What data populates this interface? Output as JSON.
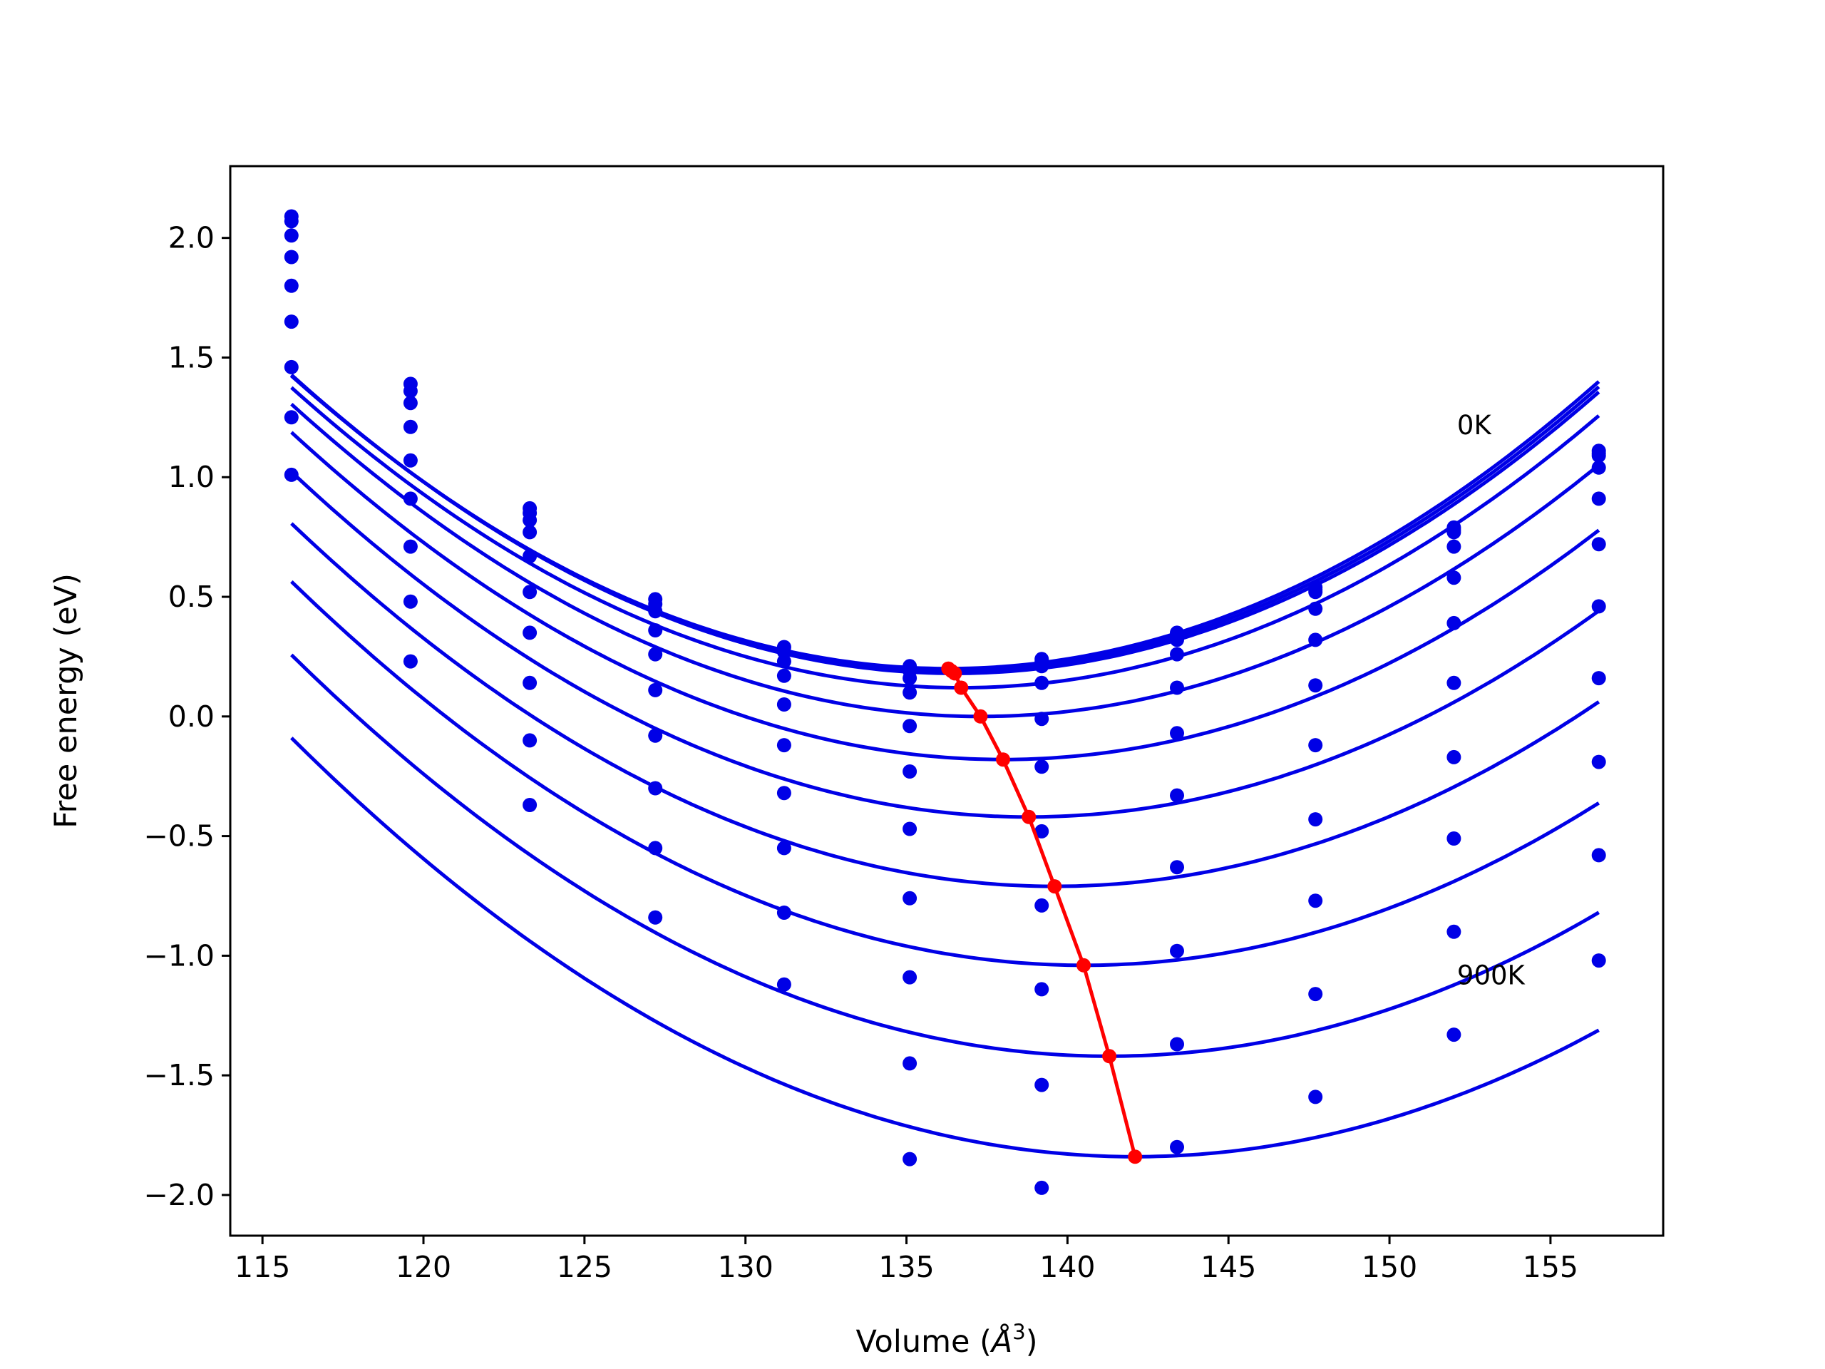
{
  "chart_data": {
    "type": "line",
    "title": "",
    "xlabel_main": "Volume (",
    "xlabel_unit": "Å",
    "xlabel_exp": "3",
    "xlabel_close": ")",
    "ylabel": "Free energy (eV)",
    "xlim": [
      114.0,
      158.5
    ],
    "ylim": [
      -2.17,
      2.3
    ],
    "xticks": [
      {
        "value": 115,
        "label": "115"
      },
      {
        "value": 120,
        "label": "120"
      },
      {
        "value": 125,
        "label": "125"
      },
      {
        "value": 130,
        "label": "130"
      },
      {
        "value": 135,
        "label": "135"
      },
      {
        "value": 140,
        "label": "140"
      },
      {
        "value": 145,
        "label": "145"
      },
      {
        "value": 150,
        "label": "150"
      },
      {
        "value": 155,
        "label": "155"
      }
    ],
    "yticks": [
      {
        "value": 2.0,
        "label": "2.0"
      },
      {
        "value": 1.5,
        "label": "1.5"
      },
      {
        "value": 1.0,
        "label": "1.0"
      },
      {
        "value": 0.5,
        "label": "0.5"
      },
      {
        "value": 0.0,
        "label": "0.0"
      },
      {
        "value": -0.5,
        "label": "−0.5"
      },
      {
        "value": -1.0,
        "label": "−1.0"
      },
      {
        "value": -1.5,
        "label": "−1.5"
      },
      {
        "value": -2.0,
        "label": "−2.0"
      }
    ],
    "grid": false,
    "legend": "none",
    "curve_color": "#0000e6",
    "min_line_color": "#ff0000",
    "annotations": [
      {
        "text": "0K",
        "x": 152.1,
        "y": 1.18
      },
      {
        "text": "900K",
        "x": 152.1,
        "y": -1.12
      }
    ],
    "x": [
      115.9,
      119.6,
      123.3,
      127.2,
      131.2,
      135.1,
      139.2,
      143.4,
      147.7,
      152.0,
      156.5
    ],
    "series": [
      {
        "points": [
          2.09,
          1.39,
          0.87,
          0.49,
          0.29,
          0.21,
          0.24,
          0.35,
          0.54,
          0.79,
          1.11
        ],
        "fit": {
          "a": 0.00294,
          "vmin": 136.3,
          "emin": 0.2
        }
      },
      {
        "points": [
          2.07,
          1.36,
          0.85,
          0.47,
          0.27,
          0.19,
          0.23,
          0.34,
          0.53,
          0.78,
          1.1
        ],
        "fit": {
          "a": 0.00294,
          "vmin": 136.4,
          "emin": 0.19
        }
      },
      {
        "points": [
          2.01,
          1.31,
          0.82,
          0.44,
          0.23,
          0.16,
          0.21,
          0.32,
          0.52,
          0.77,
          1.09
        ],
        "fit": {
          "a": 0.00294,
          "vmin": 136.5,
          "emin": 0.18
        }
      },
      {
        "points": [
          1.92,
          1.21,
          0.77,
          0.36,
          0.17,
          0.1,
          0.14,
          0.26,
          0.45,
          0.71,
          1.04
        ],
        "fit": {
          "a": 0.0029,
          "vmin": 136.7,
          "emin": 0.12
        }
      },
      {
        "points": [
          1.8,
          1.07,
          0.67,
          0.26,
          0.05,
          -0.04,
          -0.01,
          0.12,
          0.32,
          0.58,
          0.91
        ],
        "fit": {
          "a": 0.00285,
          "vmin": 137.3,
          "emin": 0.0
        }
      },
      {
        "points": [
          1.65,
          0.91,
          0.52,
          0.11,
          -0.12,
          -0.23,
          -0.21,
          -0.07,
          0.13,
          0.39,
          0.72
        ],
        "fit": {
          "a": 0.0028,
          "vmin": 138.0,
          "emin": -0.18
        }
      },
      {
        "points": [
          1.46,
          0.71,
          0.35,
          -0.08,
          -0.32,
          -0.47,
          -0.48,
          -0.33,
          -0.12,
          0.14,
          0.46
        ],
        "fit": {
          "a": 0.00275,
          "vmin": 138.8,
          "emin": -0.42
        }
      },
      {
        "points": [
          1.25,
          0.48,
          0.14,
          -0.3,
          -0.55,
          -0.76,
          -0.79,
          -0.63,
          -0.43,
          -0.17,
          0.16
        ],
        "fit": {
          "a": 0.0027,
          "vmin": 139.6,
          "emin": -0.71
        }
      },
      {
        "points": [
          1.01,
          0.23,
          -0.1,
          -0.55,
          -0.82,
          -1.09,
          -1.14,
          -0.98,
          -0.77,
          -0.51,
          -0.19
        ],
        "fit": {
          "a": 0.00265,
          "vmin": 140.5,
          "emin": -1.04
        }
      },
      {
        "points": [
          null,
          null,
          -0.37,
          -0.84,
          -1.12,
          -1.45,
          -1.54,
          -1.37,
          -1.16,
          -0.9,
          -0.58
        ],
        "fit": {
          "a": 0.0026,
          "vmin": 141.3,
          "emin": -1.42
        }
      },
      {
        "points": [
          null,
          null,
          null,
          null,
          null,
          -1.85,
          -1.97,
          -1.8,
          -1.59,
          -1.33,
          -1.02
        ],
        "fit": {
          "a": 0.00255,
          "vmin": 142.1,
          "emin": -1.84
        }
      }
    ],
    "minima": [
      [
        136.3,
        0.2
      ],
      [
        136.4,
        0.19
      ],
      [
        136.5,
        0.18
      ],
      [
        136.7,
        0.12
      ],
      [
        137.3,
        0.0
      ],
      [
        138.0,
        -0.18
      ],
      [
        138.8,
        -0.42
      ],
      [
        139.6,
        -0.71
      ],
      [
        140.5,
        -1.04
      ],
      [
        141.3,
        -1.42
      ],
      [
        142.1,
        -1.84
      ]
    ]
  }
}
